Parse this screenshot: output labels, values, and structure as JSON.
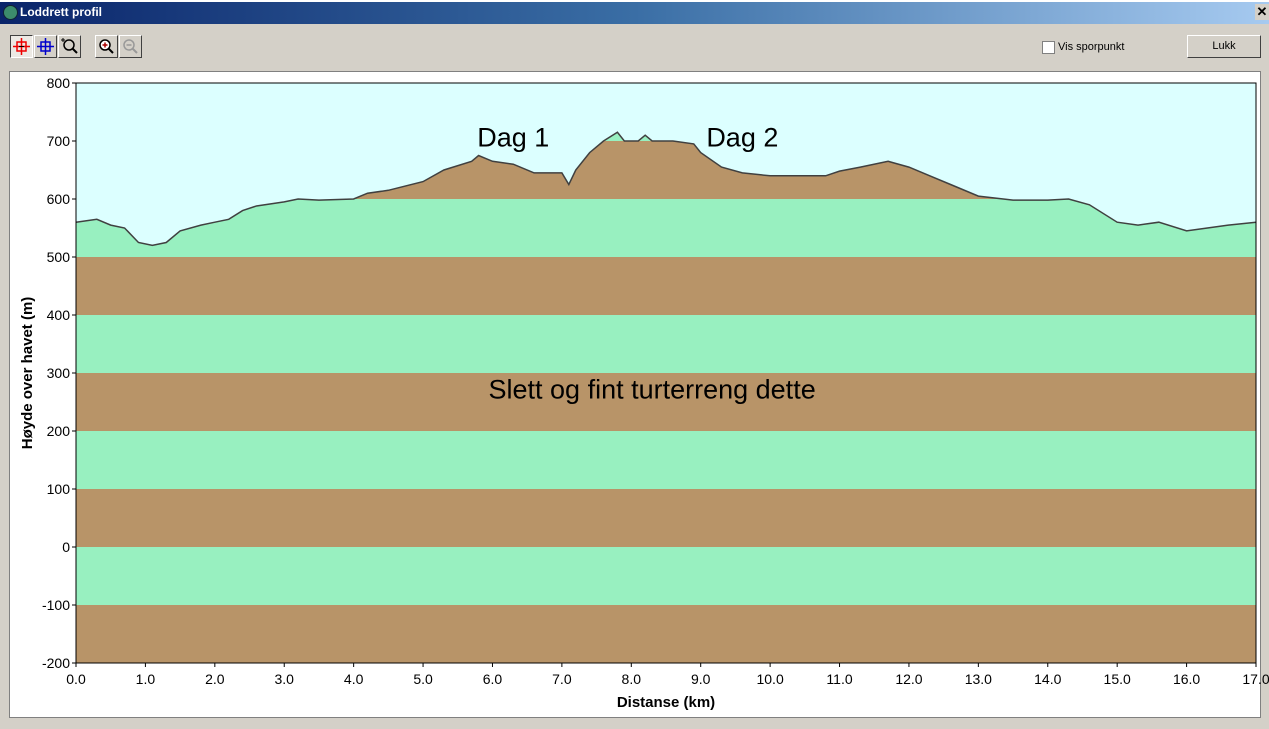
{
  "window": {
    "title": "Loddrett profil",
    "close_label": "✕"
  },
  "toolbar": {
    "tools": [
      "select-red-crosshair",
      "select-blue-crosshair",
      "zoom-window",
      "zoom-in",
      "zoom-out"
    ],
    "checkbox_label": "Vis sporpunkt",
    "checkbox_checked": false,
    "close_button": "Lukk"
  },
  "chart_data": {
    "type": "area",
    "xlabel": "Distanse   (km)",
    "ylabel": "Høyde over havet (m)",
    "xlim": [
      0,
      17
    ],
    "ylim": [
      -200,
      800
    ],
    "xticks": [
      "0.0",
      "1.0",
      "2.0",
      "3.0",
      "4.0",
      "5.0",
      "6.0",
      "7.0",
      "8.0",
      "9.0",
      "10.0",
      "11.0",
      "12.0",
      "13.0",
      "14.0",
      "15.0",
      "16.0",
      "17.0"
    ],
    "yticks": [
      "800",
      "700",
      "600",
      "500",
      "400",
      "300",
      "200",
      "100",
      "0",
      "-100",
      "-200"
    ],
    "colors": {
      "sky": "#dcffff",
      "band_a": "#b89468",
      "band_b": "#98f0c0",
      "line": "#404040"
    },
    "annotations": [
      {
        "text": "Dag 1",
        "x": 6.3,
        "y": 715
      },
      {
        "text": "Dag 2",
        "x": 9.6,
        "y": 715
      },
      {
        "text": "Slett og fint turterreng dette",
        "x": 8.3,
        "y": 280
      }
    ],
    "x": [
      0,
      0.3,
      0.5,
      0.7,
      0.9,
      1.1,
      1.3,
      1.5,
      1.8,
      2.0,
      2.2,
      2.4,
      2.6,
      3.0,
      3.2,
      3.5,
      4.0,
      4.2,
      4.5,
      5.0,
      5.3,
      5.7,
      5.8,
      6.0,
      6.3,
      6.6,
      7.0,
      7.1,
      7.2,
      7.4,
      7.6,
      7.8,
      7.9,
      8.1,
      8.2,
      8.3,
      8.6,
      8.9,
      9.0,
      9.3,
      9.6,
      10.0,
      10.5,
      10.8,
      11.0,
      11.3,
      11.7,
      12.0,
      12.3,
      12.6,
      13.0,
      13.5,
      14.0,
      14.3,
      14.6,
      15.0,
      15.3,
      15.6,
      16.0,
      16.3,
      16.6,
      17.0
    ],
    "y": [
      560,
      565,
      555,
      550,
      525,
      520,
      525,
      545,
      555,
      560,
      565,
      580,
      588,
      595,
      600,
      598,
      600,
      610,
      615,
      630,
      650,
      665,
      675,
      665,
      660,
      645,
      645,
      625,
      650,
      680,
      700,
      715,
      700,
      700,
      710,
      700,
      700,
      695,
      680,
      655,
      645,
      640,
      640,
      640,
      648,
      655,
      665,
      655,
      640,
      625,
      605,
      598,
      598,
      600,
      590,
      560,
      555,
      560,
      545,
      550,
      555,
      560
    ]
  }
}
